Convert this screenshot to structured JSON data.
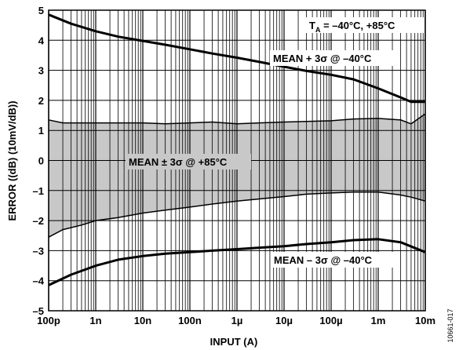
{
  "chart_data": {
    "type": "line",
    "xlabel": "INPUT (A)",
    "ylabel": "ERROR ((dB) (10mV/dB))",
    "x_scale": "log",
    "xlim": [
      1e-10,
      0.01
    ],
    "ylim": [
      -5,
      5
    ],
    "grid": true,
    "x_ticks": [
      {
        "value": 1e-10,
        "label": "100p"
      },
      {
        "value": 1e-09,
        "label": "1n"
      },
      {
        "value": 1e-08,
        "label": "10n"
      },
      {
        "value": 1e-07,
        "label": "100n"
      },
      {
        "value": 1e-06,
        "label": "1µ"
      },
      {
        "value": 1e-05,
        "label": "10µ"
      },
      {
        "value": 0.0001,
        "label": "100µ"
      },
      {
        "value": 0.001,
        "label": "1m"
      },
      {
        "value": 0.01,
        "label": "10m"
      }
    ],
    "y_ticks": [
      {
        "value": 5,
        "label": "5"
      },
      {
        "value": 4,
        "label": "4"
      },
      {
        "value": 3,
        "label": "3"
      },
      {
        "value": 2,
        "label": "2"
      },
      {
        "value": 1,
        "label": "1"
      },
      {
        "value": 0,
        "label": "0"
      },
      {
        "value": -1,
        "label": "–1"
      },
      {
        "value": -2,
        "label": "–2"
      },
      {
        "value": -3,
        "label": "–3"
      },
      {
        "value": -4,
        "label": "–4"
      },
      {
        "value": -5,
        "label": "–5"
      }
    ],
    "series": [
      {
        "name": "MEAN + 3σ @ –40°C",
        "color": "#000000",
        "x": [
          1e-10,
          3e-10,
          1e-09,
          3e-09,
          1e-08,
          3e-08,
          1e-07,
          3e-07,
          1e-06,
          3e-06,
          1e-05,
          3e-05,
          0.0001,
          0.0003,
          0.001,
          0.003,
          0.005,
          0.01
        ],
        "y": [
          4.85,
          4.55,
          4.3,
          4.12,
          3.98,
          3.85,
          3.7,
          3.56,
          3.42,
          3.28,
          3.12,
          2.98,
          2.85,
          2.7,
          2.4,
          2.1,
          1.95,
          1.95
        ]
      },
      {
        "name": "MEAN – 3σ @ –40°C",
        "color": "#000000",
        "x": [
          1e-10,
          3e-10,
          1e-09,
          3e-09,
          1e-08,
          3e-08,
          1e-07,
          3e-07,
          1e-06,
          3e-06,
          1e-05,
          3e-05,
          0.0001,
          0.0003,
          0.001,
          0.003,
          0.01
        ],
        "y": [
          -4.15,
          -3.8,
          -3.5,
          -3.3,
          -3.18,
          -3.1,
          -3.05,
          -3.0,
          -2.95,
          -2.9,
          -2.85,
          -2.78,
          -2.72,
          -2.65,
          -2.62,
          -2.72,
          -3.05
        ]
      },
      {
        "name": "MEAN ± 3σ @ +85°C",
        "type": "band",
        "fill": "#c8c8c8",
        "x": [
          1e-10,
          2e-10,
          5e-10,
          1e-09,
          3e-09,
          1e-08,
          3e-08,
          1e-07,
          3e-07,
          1e-06,
          3e-06,
          1e-05,
          3e-05,
          0.0001,
          0.0003,
          0.001,
          0.003,
          0.005,
          0.01
        ],
        "upper": [
          1.35,
          1.25,
          1.25,
          1.25,
          1.25,
          1.25,
          1.22,
          1.25,
          1.28,
          1.22,
          1.25,
          1.28,
          1.3,
          1.32,
          1.38,
          1.4,
          1.35,
          1.22,
          1.55
        ],
        "lower": [
          -2.55,
          -2.3,
          -2.15,
          -2.0,
          -1.9,
          -1.75,
          -1.65,
          -1.55,
          -1.45,
          -1.35,
          -1.28,
          -1.2,
          -1.12,
          -1.08,
          -1.05,
          -1.05,
          -1.15,
          -1.22,
          -1.35
        ]
      }
    ],
    "annotations": [
      {
        "id": "temp",
        "text_pre": "T",
        "text_sub": "A",
        "text_post": " = –40°C, +85°C"
      },
      {
        "id": "upper",
        "text": "MEAN + 3σ @ –40°C"
      },
      {
        "id": "band",
        "text": "MEAN ± 3σ @ +85°C"
      },
      {
        "id": "lower",
        "text": "MEAN – 3σ @ –40°C"
      }
    ],
    "figure_id": "10661-017"
  }
}
